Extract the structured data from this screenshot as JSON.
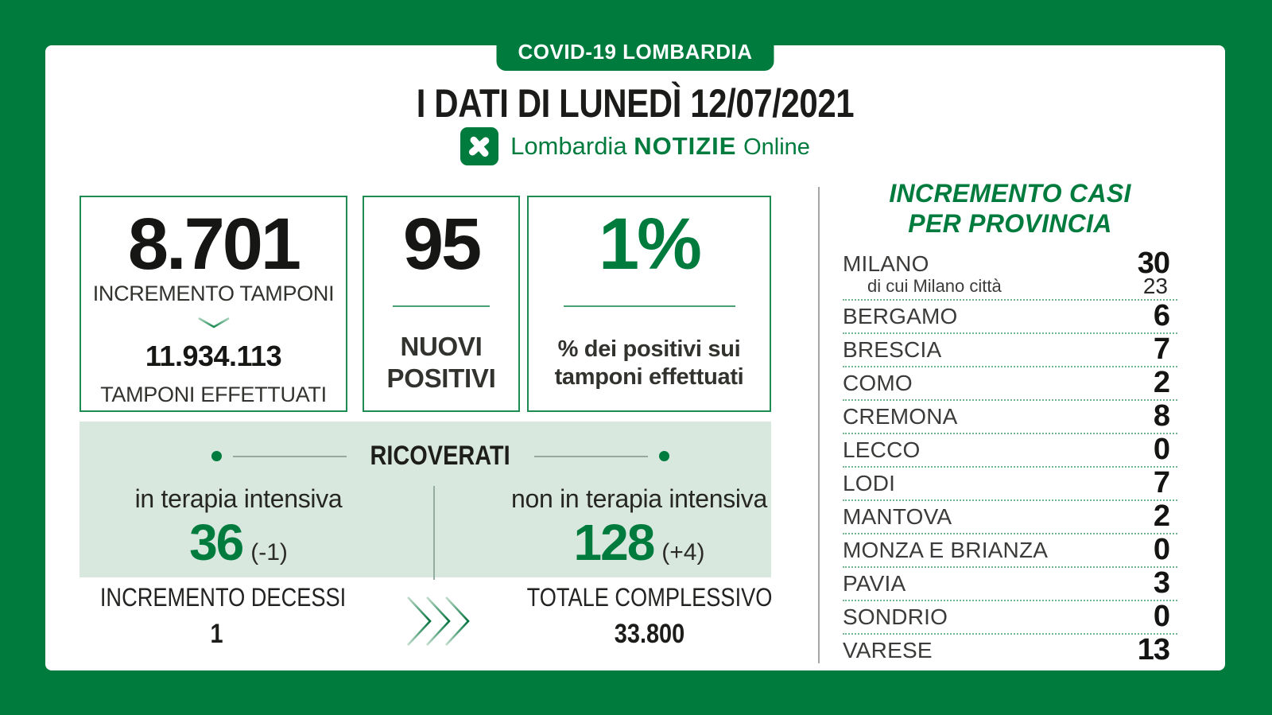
{
  "colors": {
    "brand_green": "#007B3E",
    "panel_light_green": "#d9e8de",
    "dotted_line_green": "#74b492",
    "dark_text": "#1d1d1b"
  },
  "header": {
    "badge": "COVID-19 LOMBARDIA",
    "title": "I DATI DI LUNEDÌ 12/07/2021",
    "logo_brand": "Lombardia",
    "logo_name": "NOTIZIE",
    "logo_suffix": "Online"
  },
  "cards": {
    "tamponi": {
      "increment": "8.701",
      "increment_label": "INCREMENTO TAMPONI",
      "total": "11.934.113",
      "total_label": "TAMPONI EFFETTUATI"
    },
    "nuovi_positivi": {
      "value": "95",
      "label_line1": "NUOVI",
      "label_line2": "POSITIVI"
    },
    "percentuale": {
      "value": "1%",
      "label_line1": "% dei positivi sui",
      "label_line2": "tamponi effettuati"
    }
  },
  "ricoverati": {
    "title": "RICOVERATI",
    "terapia_intensiva": {
      "label": "in terapia intensiva",
      "value": "36",
      "delta": "(-1)"
    },
    "non_terapia_intensiva": {
      "label": "non in terapia intensiva",
      "value": "128",
      "delta": "(+4)"
    }
  },
  "footer": {
    "decessi_label": "INCREMENTO DECESSI",
    "decessi_value": "1",
    "totale_label": "TOTALE COMPLESSIVO",
    "totale_value": "33.800"
  },
  "province": {
    "title_line1": "INCREMENTO CASI",
    "title_line2": "PER PROVINCIA",
    "rows": [
      {
        "name": "MILANO",
        "value": "30",
        "sub": {
          "name": "di cui Milano città",
          "value": "23"
        }
      },
      {
        "name": "BERGAMO",
        "value": "6"
      },
      {
        "name": "BRESCIA",
        "value": "7"
      },
      {
        "name": "COMO",
        "value": "2"
      },
      {
        "name": "CREMONA",
        "value": "8"
      },
      {
        "name": "LECCO",
        "value": "0"
      },
      {
        "name": "LODI",
        "value": "7"
      },
      {
        "name": "MANTOVA",
        "value": "2"
      },
      {
        "name": "MONZA E BRIANZA",
        "value": "0"
      },
      {
        "name": "PAVIA",
        "value": "3"
      },
      {
        "name": "SONDRIO",
        "value": "0"
      },
      {
        "name": "VARESE",
        "value": "13"
      }
    ]
  },
  "chart_data": {
    "type": "table",
    "title": "COVID-19 Lombardia — I dati di lunedì 12/07/2021",
    "stats": {
      "incremento_tamponi": 8701,
      "tamponi_effettuati": 11934113,
      "nuovi_positivi": 95,
      "percentuale_positivi_su_tamponi": "1%",
      "ricoverati_terapia_intensiva": 36,
      "ricoverati_terapia_intensiva_delta": -1,
      "ricoverati_non_terapia_intensiva": 128,
      "ricoverati_non_terapia_intensiva_delta": 4,
      "incremento_decessi": 1,
      "totale_complessivo": 33800
    },
    "categories": [
      "MILANO",
      "BERGAMO",
      "BRESCIA",
      "COMO",
      "CREMONA",
      "LECCO",
      "LODI",
      "MANTOVA",
      "MONZA E BRIANZA",
      "PAVIA",
      "SONDRIO",
      "VARESE"
    ],
    "values": [
      30,
      6,
      7,
      2,
      8,
      0,
      7,
      2,
      0,
      3,
      0,
      13
    ],
    "annotations": {
      "di_cui_milano_citta": 23
    }
  }
}
